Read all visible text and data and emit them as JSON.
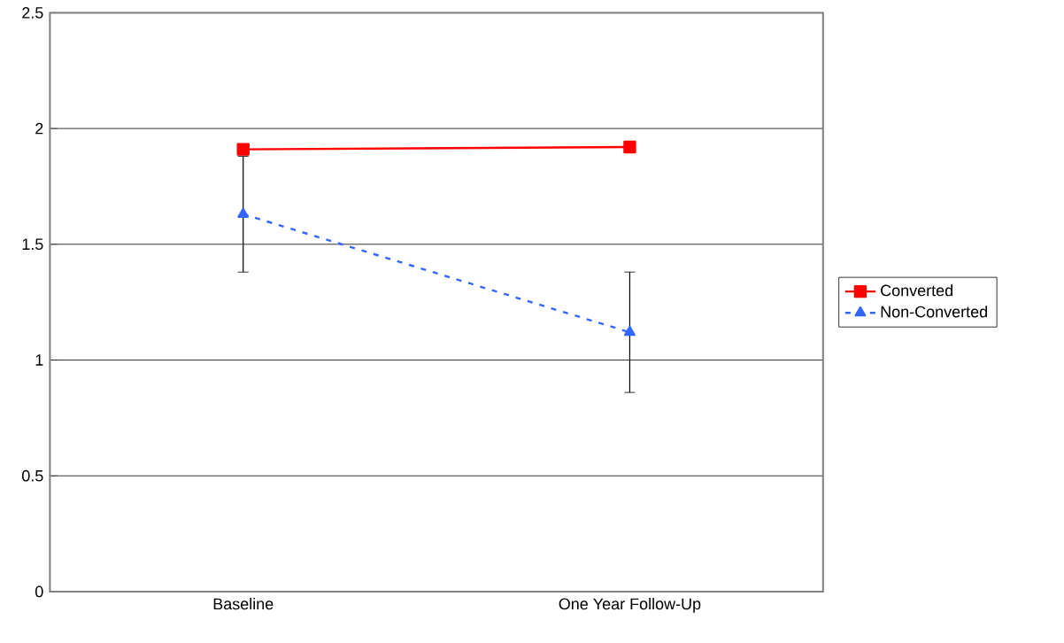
{
  "chart_data": {
    "type": "line",
    "categories": [
      "Baseline",
      "One Year Follow-Up"
    ],
    "series": [
      {
        "name": "Converted",
        "color": "#ff0000",
        "values": [
          1.91,
          1.92
        ],
        "marker": "square",
        "line_style": "solid"
      },
      {
        "name": "Non-Converted",
        "color": "#3366ff",
        "values": [
          1.63,
          1.12
        ],
        "errors": [
          0.25,
          0.26
        ],
        "marker": "triangle",
        "line_style": "dashed"
      }
    ],
    "ylim": [
      0,
      2.5
    ],
    "yticks": [
      0,
      0.5,
      1,
      1.5,
      2,
      2.5
    ],
    "grid": "y",
    "legend": "right"
  }
}
